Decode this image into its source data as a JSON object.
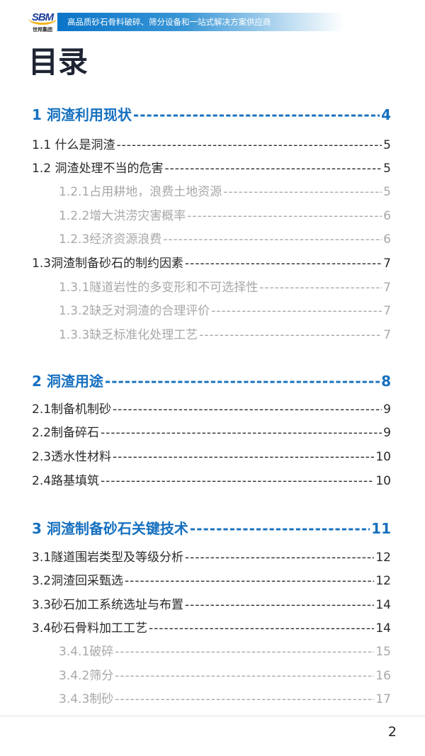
{
  "header": {
    "logo_text": "SBM",
    "logo_subtext": "世邦集团",
    "banner": "高品质砂石骨料破碎、筛分设备和一站式解决方案供应商"
  },
  "page_title": "目录",
  "toc": [
    {
      "level": 1,
      "title": "1  洞渣利用现状",
      "page": "4"
    },
    {
      "level": 2,
      "title": "1.1 什么是洞渣",
      "page": "5"
    },
    {
      "level": 2,
      "title": "1.2 洞渣处理不当的危害",
      "page": "5"
    },
    {
      "level": 3,
      "title": "1.2.1占用耕地，浪费土地资源",
      "page": "5"
    },
    {
      "level": 3,
      "title": "1.2.2增大洪涝灾害概率",
      "page": "6"
    },
    {
      "level": 3,
      "title": "1.2.3经济资源浪费",
      "page": "6"
    },
    {
      "level": 2,
      "title": "1.3洞渣制备砂石的制约因素",
      "page": "7"
    },
    {
      "level": 3,
      "title": "1.3.1隧道岩性的多变形和不可选择性",
      "page": "7"
    },
    {
      "level": 3,
      "title": "1.3.2缺乏对洞渣的合理评价",
      "page": "7"
    },
    {
      "level": 3,
      "title": "1.3.3缺乏标准化处理工艺",
      "page": "7"
    },
    {
      "level": 1,
      "title": "2  洞渣用途",
      "page": "8"
    },
    {
      "level": 2,
      "title": "2.1制备机制砂",
      "page": "9"
    },
    {
      "level": 2,
      "title": "2.2制备碎石",
      "page": "9"
    },
    {
      "level": 2,
      "title": "2.3透水性材料",
      "page": "10"
    },
    {
      "level": 2,
      "title": "2.4路基填筑",
      "page": "10"
    },
    {
      "level": 1,
      "title": "3  洞渣制备砂石关键技术",
      "page": "11"
    },
    {
      "level": 2,
      "title": "3.1隧道围岩类型及等级分析",
      "page": "12"
    },
    {
      "level": 2,
      "title": "3.2洞渣回采甄选",
      "page": "12"
    },
    {
      "level": 2,
      "title": "3.3砂石加工系统选址与布置",
      "page": "14"
    },
    {
      "level": 2,
      "title": "3.4砂石骨料加工工艺",
      "page": "14"
    },
    {
      "level": 3,
      "title": "3.4.1破碎",
      "page": "15"
    },
    {
      "level": 3,
      "title": "3.4.2筛分",
      "page": "16"
    },
    {
      "level": 3,
      "title": "3.4.3制砂",
      "page": "17"
    }
  ],
  "page_number": "2"
}
